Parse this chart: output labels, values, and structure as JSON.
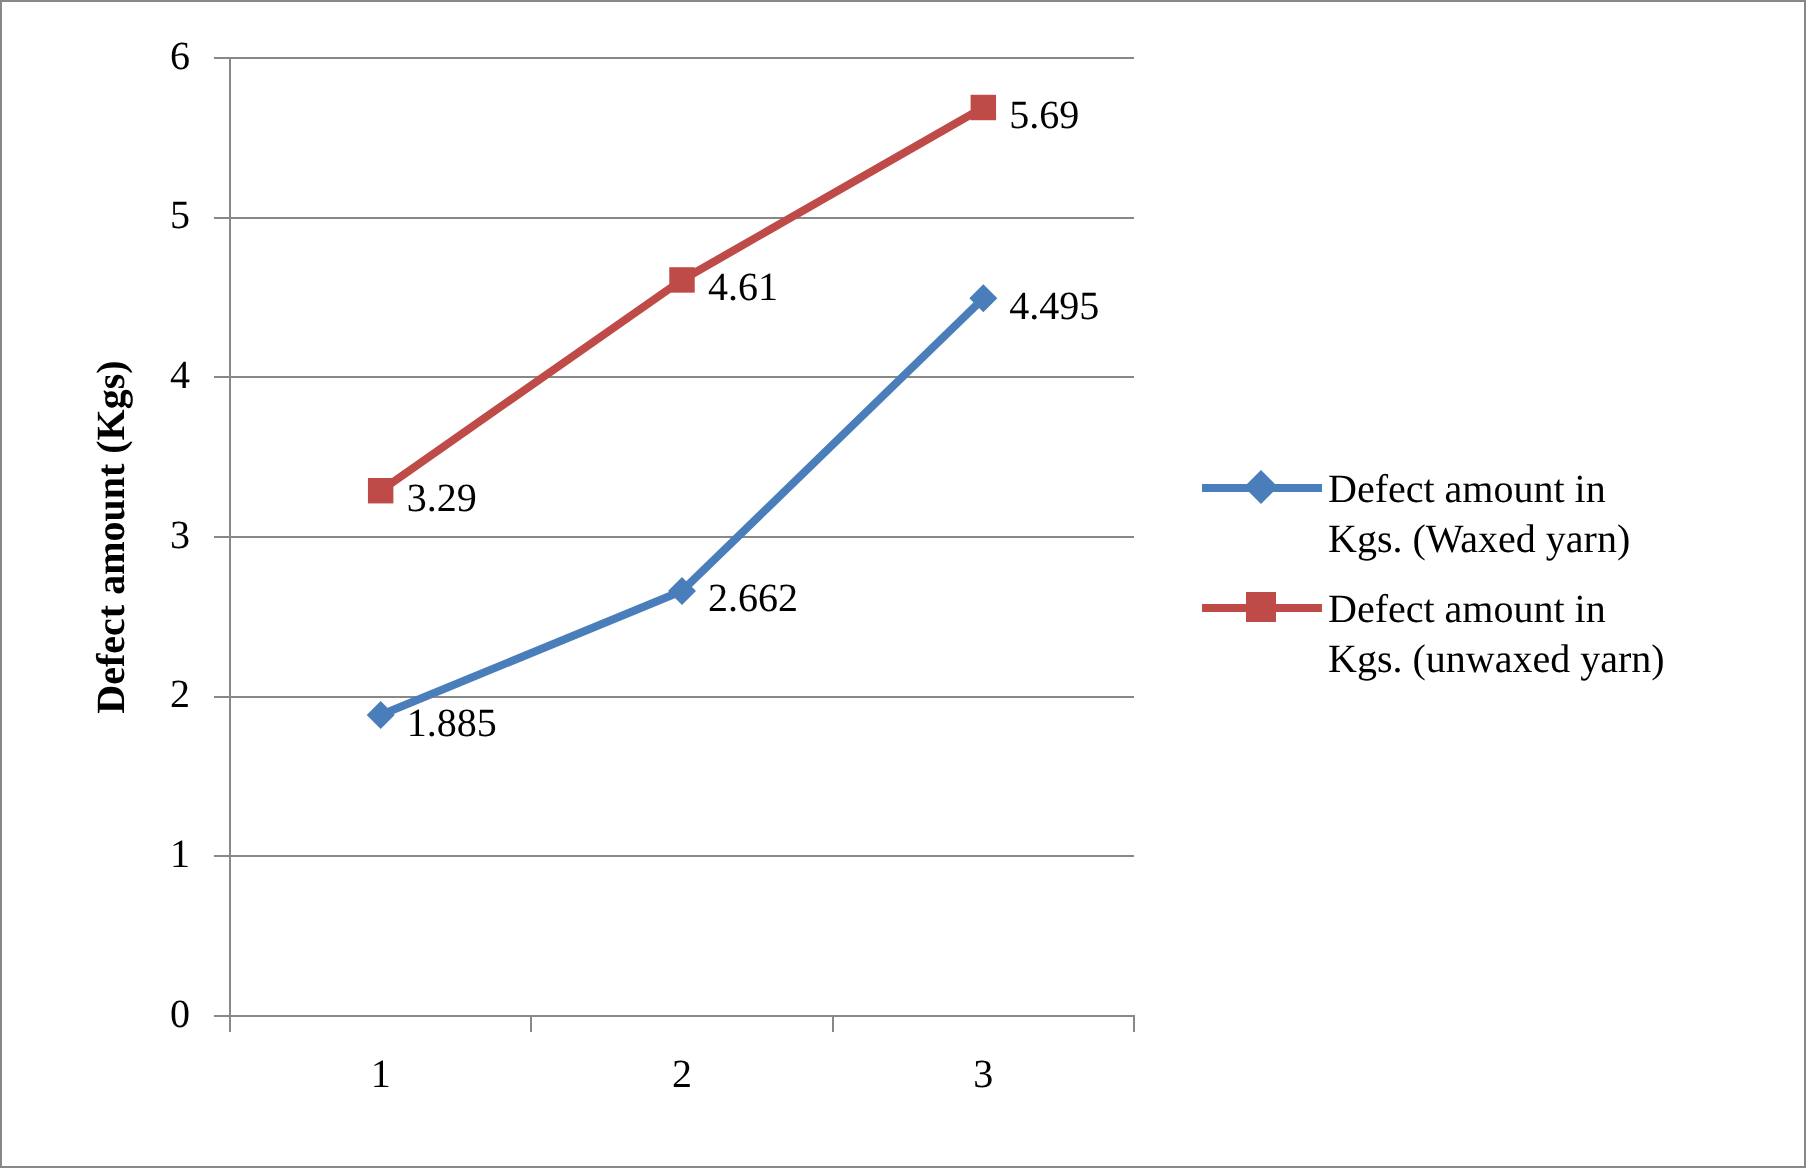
{
  "chart_data": {
    "type": "line",
    "ylabel": "Defect amount (Kgs)",
    "categories": [
      "1",
      "2",
      "3"
    ],
    "series": [
      {
        "name": "Defect amount in Kgs. (Waxed yarn)",
        "color": "#4a7ebb",
        "marker": "diamond",
        "values": [
          1.885,
          2.662,
          4.495
        ]
      },
      {
        "name": "Defect amount in Kgs. (unwaxed yarn)",
        "color": "#be4b48",
        "marker": "square",
        "values": [
          3.29,
          4.61,
          5.69
        ]
      }
    ],
    "ylim": [
      0,
      6
    ],
    "yticks": [
      0,
      1,
      2,
      3,
      4,
      5,
      6
    ],
    "grid": "y",
    "legend": "right",
    "data_labels": true
  }
}
